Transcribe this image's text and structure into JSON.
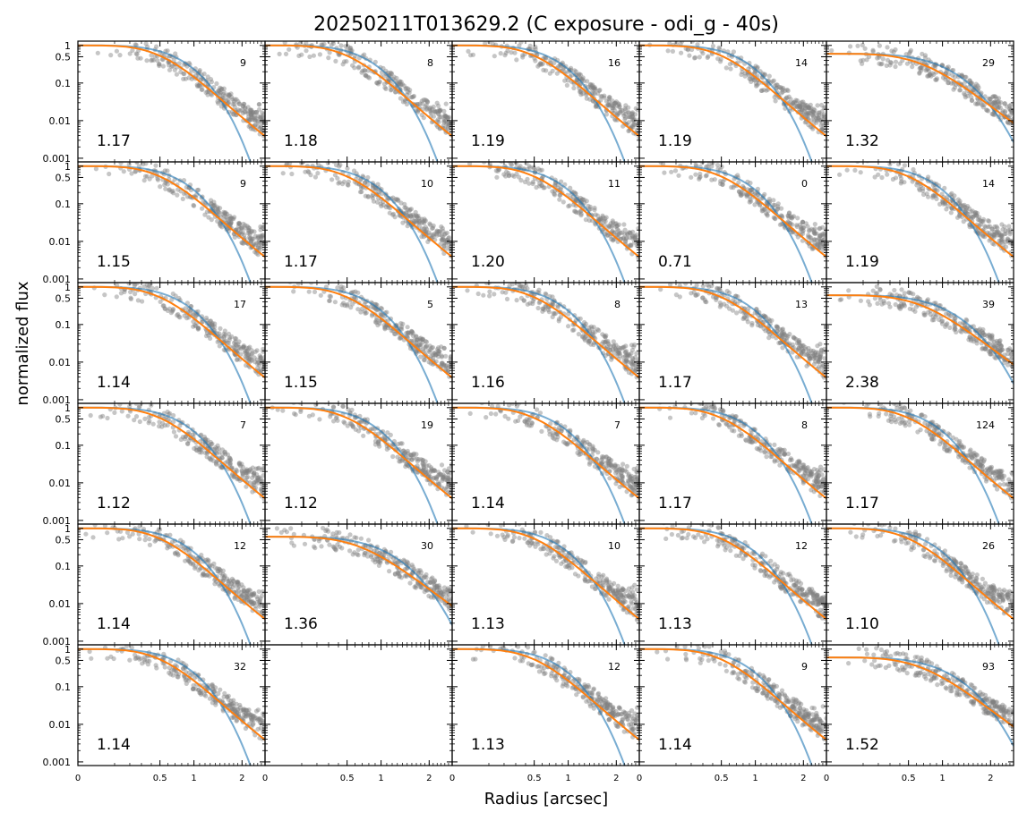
{
  "chart_data": {
    "type": "scatter",
    "title": "20250211T013629.2 (C exposure - odi_g - 40s)",
    "xlabel": "Radius [arcsec]",
    "ylabel": "normalized flux",
    "x_ticks": [
      "0",
      "0.5",
      "1",
      "2"
    ],
    "y_ticks": [
      "1",
      "0.5",
      "0.1",
      "0.01",
      "0.001"
    ],
    "yscale": "log",
    "ylim": [
      0.0008,
      1.3
    ],
    "grid": {
      "rows": 6,
      "cols": 5
    },
    "colors": {
      "points": "#808080",
      "model_orange": "#ff7f0e",
      "model_blue": "#1f77b4"
    },
    "panels": [
      {
        "fwhm": "1.17",
        "n": "9"
      },
      {
        "fwhm": "1.18",
        "n": "8"
      },
      {
        "fwhm": "1.19",
        "n": "16"
      },
      {
        "fwhm": "1.19",
        "n": "14"
      },
      {
        "fwhm": "1.32",
        "n": "29"
      },
      {
        "fwhm": "1.15",
        "n": "9"
      },
      {
        "fwhm": "1.17",
        "n": "10"
      },
      {
        "fwhm": "1.20",
        "n": "11"
      },
      {
        "fwhm": "0.71",
        "n": "0"
      },
      {
        "fwhm": "1.19",
        "n": "14"
      },
      {
        "fwhm": "1.14",
        "n": "17"
      },
      {
        "fwhm": "1.15",
        "n": "5"
      },
      {
        "fwhm": "1.16",
        "n": "8"
      },
      {
        "fwhm": "1.17",
        "n": "13"
      },
      {
        "fwhm": "2.38",
        "n": "39"
      },
      {
        "fwhm": "1.12",
        "n": "7"
      },
      {
        "fwhm": "1.12",
        "n": "19"
      },
      {
        "fwhm": "1.14",
        "n": "7"
      },
      {
        "fwhm": "1.17",
        "n": "8"
      },
      {
        "fwhm": "1.17",
        "n": "124"
      },
      {
        "fwhm": "1.14",
        "n": "12"
      },
      {
        "fwhm": "1.36",
        "n": "30"
      },
      {
        "fwhm": "1.13",
        "n": "10"
      },
      {
        "fwhm": "1.13",
        "n": "12"
      },
      {
        "fwhm": "1.10",
        "n": "26"
      },
      {
        "fwhm": "1.14",
        "n": "32"
      },
      {
        "fwhm": "",
        "n": "",
        "empty": true
      },
      {
        "fwhm": "1.13",
        "n": "12"
      },
      {
        "fwhm": "1.14",
        "n": "9"
      },
      {
        "fwhm": "1.52",
        "n": "93"
      }
    ]
  }
}
